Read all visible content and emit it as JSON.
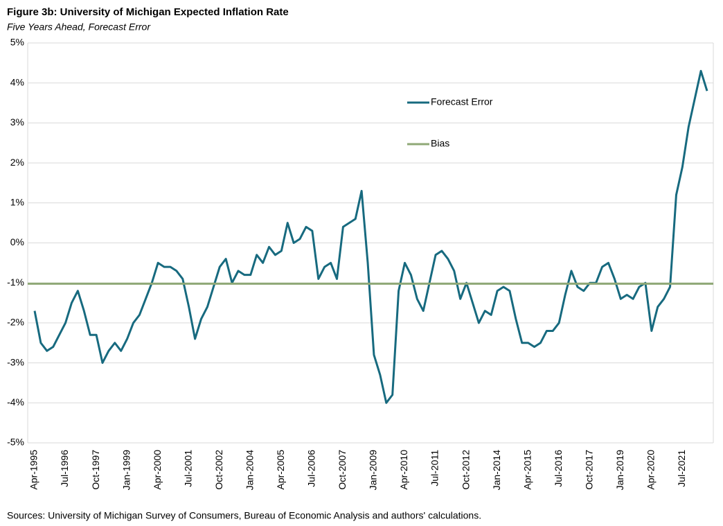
{
  "chart_data": {
    "type": "line",
    "title": "Figure 3b: University of Michigan Expected Inflation Rate",
    "subtitle": "Five Years Ahead, Forecast Error",
    "source": "Sources: University of Michigan Survey of Consumers, Bureau of Economic Analysis and authors' calculations.",
    "categories": [
      "Apr-1995",
      null,
      null,
      null,
      null,
      "Jul-1996",
      null,
      null,
      null,
      null,
      "Oct-1997",
      null,
      null,
      null,
      null,
      "Jan-1999",
      null,
      null,
      null,
      null,
      "Apr-2000",
      null,
      null,
      null,
      null,
      "Jul-2001",
      null,
      null,
      null,
      null,
      "Oct-2002",
      null,
      null,
      null,
      null,
      "Jan-2004",
      null,
      null,
      null,
      null,
      "Apr-2005",
      null,
      null,
      null,
      null,
      "Jul-2006",
      null,
      null,
      null,
      null,
      "Oct-2007",
      null,
      null,
      null,
      null,
      "Jan-2009",
      null,
      null,
      null,
      null,
      "Apr-2010",
      null,
      null,
      null,
      null,
      "Jul-2011",
      null,
      null,
      null,
      null,
      "Oct-2012",
      null,
      null,
      null,
      null,
      "Jan-2014",
      null,
      null,
      null,
      null,
      "Apr-2015",
      null,
      null,
      null,
      null,
      "Jul-2016",
      null,
      null,
      null,
      null,
      "Oct-2017",
      null,
      null,
      null,
      null,
      "Jan-2019",
      null,
      null,
      null,
      null,
      "Apr-2020",
      null,
      null,
      null,
      null,
      "Jul-2021",
      null,
      null,
      null,
      null
    ],
    "series": [
      {
        "name": "Forecast Error",
        "color": "#176a7f",
        "values": [
          -1.7,
          -2.5,
          -2.7,
          -2.6,
          -2.3,
          -2.0,
          -1.5,
          -1.2,
          -1.7,
          -2.3,
          -2.3,
          -3.0,
          -2.7,
          -2.5,
          -2.7,
          -2.4,
          -2.0,
          -1.8,
          -1.4,
          -1.0,
          -0.5,
          -0.6,
          -0.6,
          -0.7,
          -0.9,
          -1.6,
          -2.4,
          -1.9,
          -1.6,
          -1.1,
          -0.6,
          -0.4,
          -1.0,
          -0.7,
          -0.8,
          -0.8,
          -0.3,
          -0.5,
          -0.1,
          -0.3,
          -0.2,
          0.5,
          0.0,
          0.1,
          0.4,
          0.3,
          -0.9,
          -0.6,
          -0.5,
          -0.9,
          0.4,
          0.5,
          0.6,
          1.3,
          -0.5,
          -2.8,
          -3.3,
          -4.0,
          -3.8,
          -1.2,
          -0.5,
          -0.8,
          -1.4,
          -1.7,
          -1.0,
          -0.3,
          -0.2,
          -0.4,
          -0.7,
          -1.4,
          -1.0,
          -1.5,
          -2.0,
          -1.7,
          -1.8,
          -1.2,
          -1.1,
          -1.2,
          -1.9,
          -2.5,
          -2.5,
          -2.6,
          -2.5,
          -2.2,
          -2.2,
          -2.0,
          -1.3,
          -0.7,
          -1.1,
          -1.2,
          -1.0,
          -1.0,
          -0.6,
          -0.5,
          -0.9,
          -1.4,
          -1.3,
          -1.4,
          -1.1,
          -1.0,
          -2.2,
          -1.6,
          -1.4,
          -1.1,
          1.2,
          1.9,
          2.9,
          3.6,
          4.3,
          3.8
        ]
      },
      {
        "name": "Bias",
        "color": "#8fa876",
        "value": -1.02
      }
    ],
    "ylim": [
      -5,
      5
    ],
    "yticks": [
      {
        "value": -5,
        "label": "-5%"
      },
      {
        "value": -4,
        "label": "-4%"
      },
      {
        "value": -3,
        "label": "-3%"
      },
      {
        "value": -2,
        "label": "-2%"
      },
      {
        "value": -1,
        "label": "-1%"
      },
      {
        "value": 0,
        "label": "0%"
      },
      {
        "value": 1,
        "label": "1%"
      },
      {
        "value": 2,
        "label": "2%"
      },
      {
        "value": 3,
        "label": "3%"
      },
      {
        "value": 4,
        "label": "4%"
      },
      {
        "value": 5,
        "label": "5%"
      }
    ],
    "grid": true
  }
}
